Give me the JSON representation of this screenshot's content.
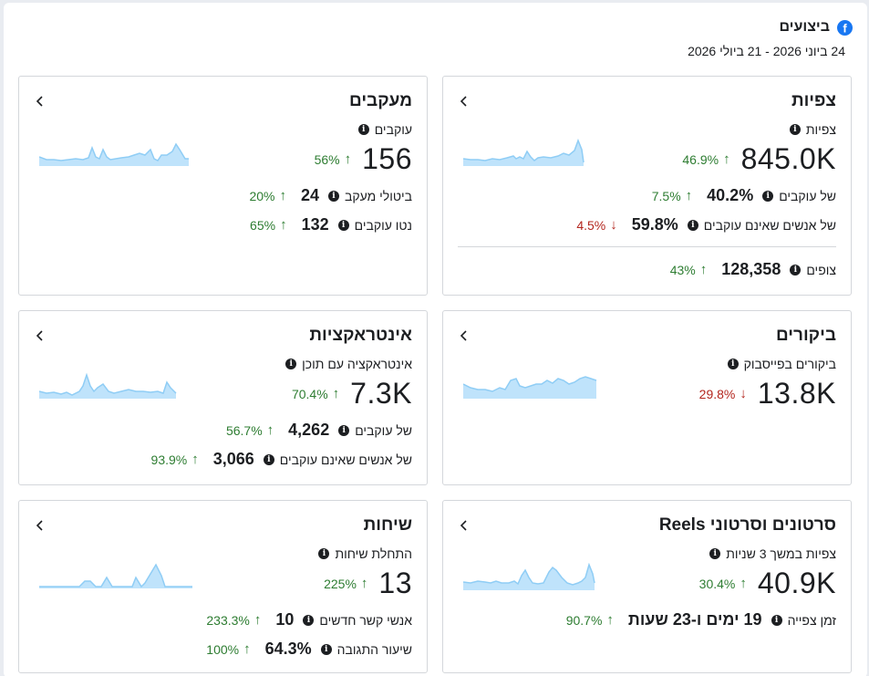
{
  "header": {
    "title": "ביצועים",
    "date_range": "24 ביוני 2026 - 21 ביולי 2026",
    "icon": "facebook-icon"
  },
  "colors": {
    "accent": "#1877f2",
    "positive": "#2e7d32",
    "negative": "#b3261e",
    "spark_fill": "#bfe3fb",
    "spark_line": "#8fcdf5"
  },
  "cards": {
    "views": {
      "title": "צפיות",
      "metric_label": "צפיות",
      "metric_value": "845.0K",
      "metric_change": "46.9%",
      "metric_dir": "up",
      "rows": [
        {
          "label": "של עוקבים",
          "value": "40.2%",
          "change": "7.5%",
          "dir": "up"
        },
        {
          "label": "של אנשים שאינם עוקבים",
          "value": "59.8%",
          "change": "4.5%",
          "dir": "down"
        },
        {
          "label": "צופים",
          "value": "128,358",
          "change": "43%",
          "dir": "up"
        }
      ]
    },
    "followers": {
      "title": "מעקבים",
      "metric_label": "עוקבים",
      "metric_value": "156",
      "metric_change": "56%",
      "metric_dir": "up",
      "rows": [
        {
          "label": "ביטולי מעקב",
          "value": "24",
          "change": "20%",
          "dir": "up"
        },
        {
          "label": "נטו עוקבים",
          "value": "132",
          "change": "65%",
          "dir": "up"
        }
      ]
    },
    "visits": {
      "title": "ביקורים",
      "metric_label": "ביקורים בפייסבוק",
      "metric_value": "13.8K",
      "metric_change": "29.8%",
      "metric_dir": "down"
    },
    "interactions": {
      "title": "אינטראקציות",
      "metric_label": "אינטראקציה עם תוכן",
      "metric_value": "7.3K",
      "metric_change": "70.4%",
      "metric_dir": "up",
      "rows": [
        {
          "label": "של עוקבים",
          "value": "4,262",
          "change": "56.7%",
          "dir": "up"
        },
        {
          "label": "של אנשים שאינם עוקבים",
          "value": "3,066",
          "change": "93.9%",
          "dir": "up"
        }
      ]
    },
    "reels": {
      "title": "סרטונים וסרטוני Reels",
      "metric_label": "צפיות במשך 3 שניות",
      "metric_value": "40.9K",
      "metric_change": "30.4%",
      "metric_dir": "up",
      "rows": [
        {
          "label": "זמן צפייה",
          "value": "19 ימים ו-23 שעות",
          "change": "90.7%",
          "dir": "up"
        }
      ]
    },
    "conversations": {
      "title": "שיחות",
      "metric_label": "התחלת שיחות",
      "metric_value": "13",
      "metric_change": "225%",
      "metric_dir": "up",
      "rows": [
        {
          "label": "אנשי קשר חדשים",
          "value": "10",
          "change": "233.3%",
          "dir": "up"
        },
        {
          "label": "שיעור התגובה",
          "value": "64.3%",
          "change": "100%",
          "dir": "up"
        }
      ]
    }
  },
  "arrows": {
    "up": "↑",
    "down": "↓"
  },
  "info_glyph": "i"
}
